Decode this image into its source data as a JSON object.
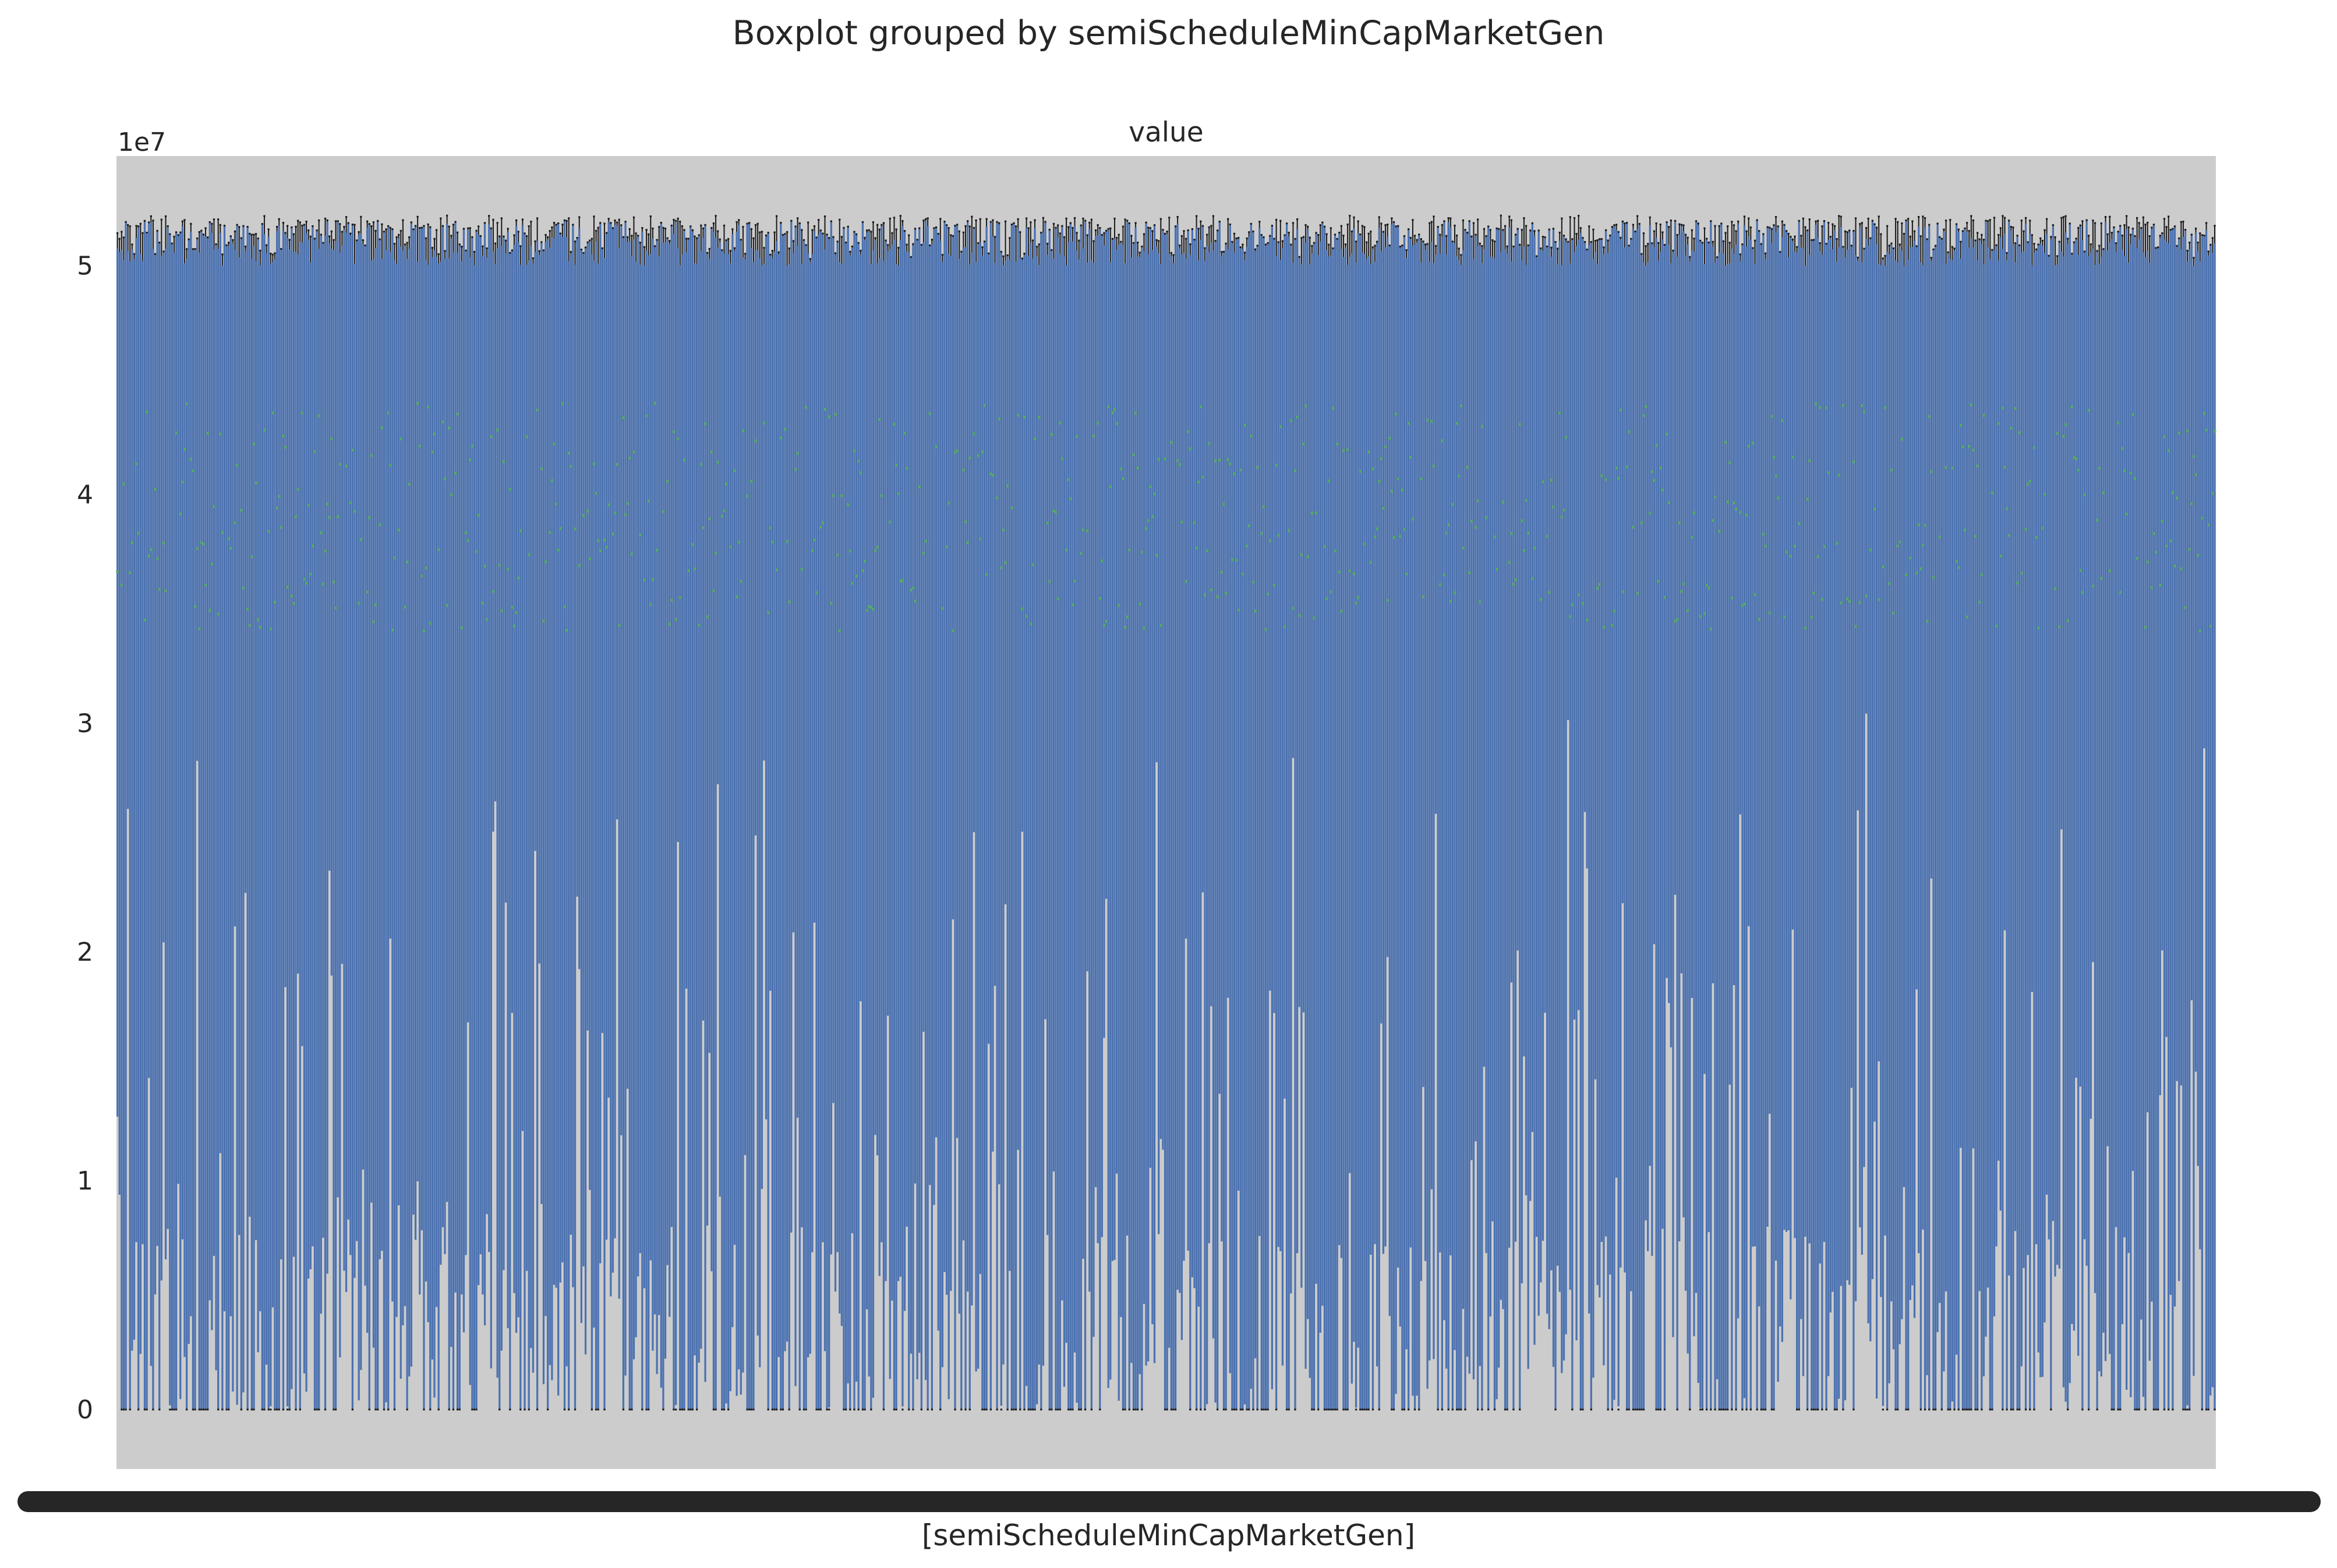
{
  "chart_data": {
    "type": "boxplot",
    "title": "Boxplot grouped by semiScheduleMinCapMarketGen",
    "subplot_title": "value",
    "xlabel": "[semiScheduleMinCapMarketGen]",
    "ylabel": "",
    "y_offset_text": "1e7",
    "ylim": [
      -2600000,
      54800000
    ],
    "yticks": [
      0,
      10000000,
      20000000,
      30000000,
      40000000,
      50000000
    ],
    "ytick_labels": [
      "0",
      "1",
      "2",
      "3",
      "4",
      "5"
    ],
    "grid": false,
    "legend": "none",
    "group_count_estimate": 1000,
    "box_summary": {
      "typical_q1_range": [
        0,
        30000000
      ],
      "typical_q3_range": [
        50000000,
        52000000
      ],
      "typical_max_range": [
        50300000,
        52200000
      ],
      "mean_marker_range": [
        34000000,
        44000000
      ]
    },
    "colors": {
      "axes_background": "#cccccc",
      "box_fill": "#4c72b0",
      "whisker": "#1a1a1a",
      "mean_marker": "#55a868",
      "tick_band": "#262626"
    }
  }
}
